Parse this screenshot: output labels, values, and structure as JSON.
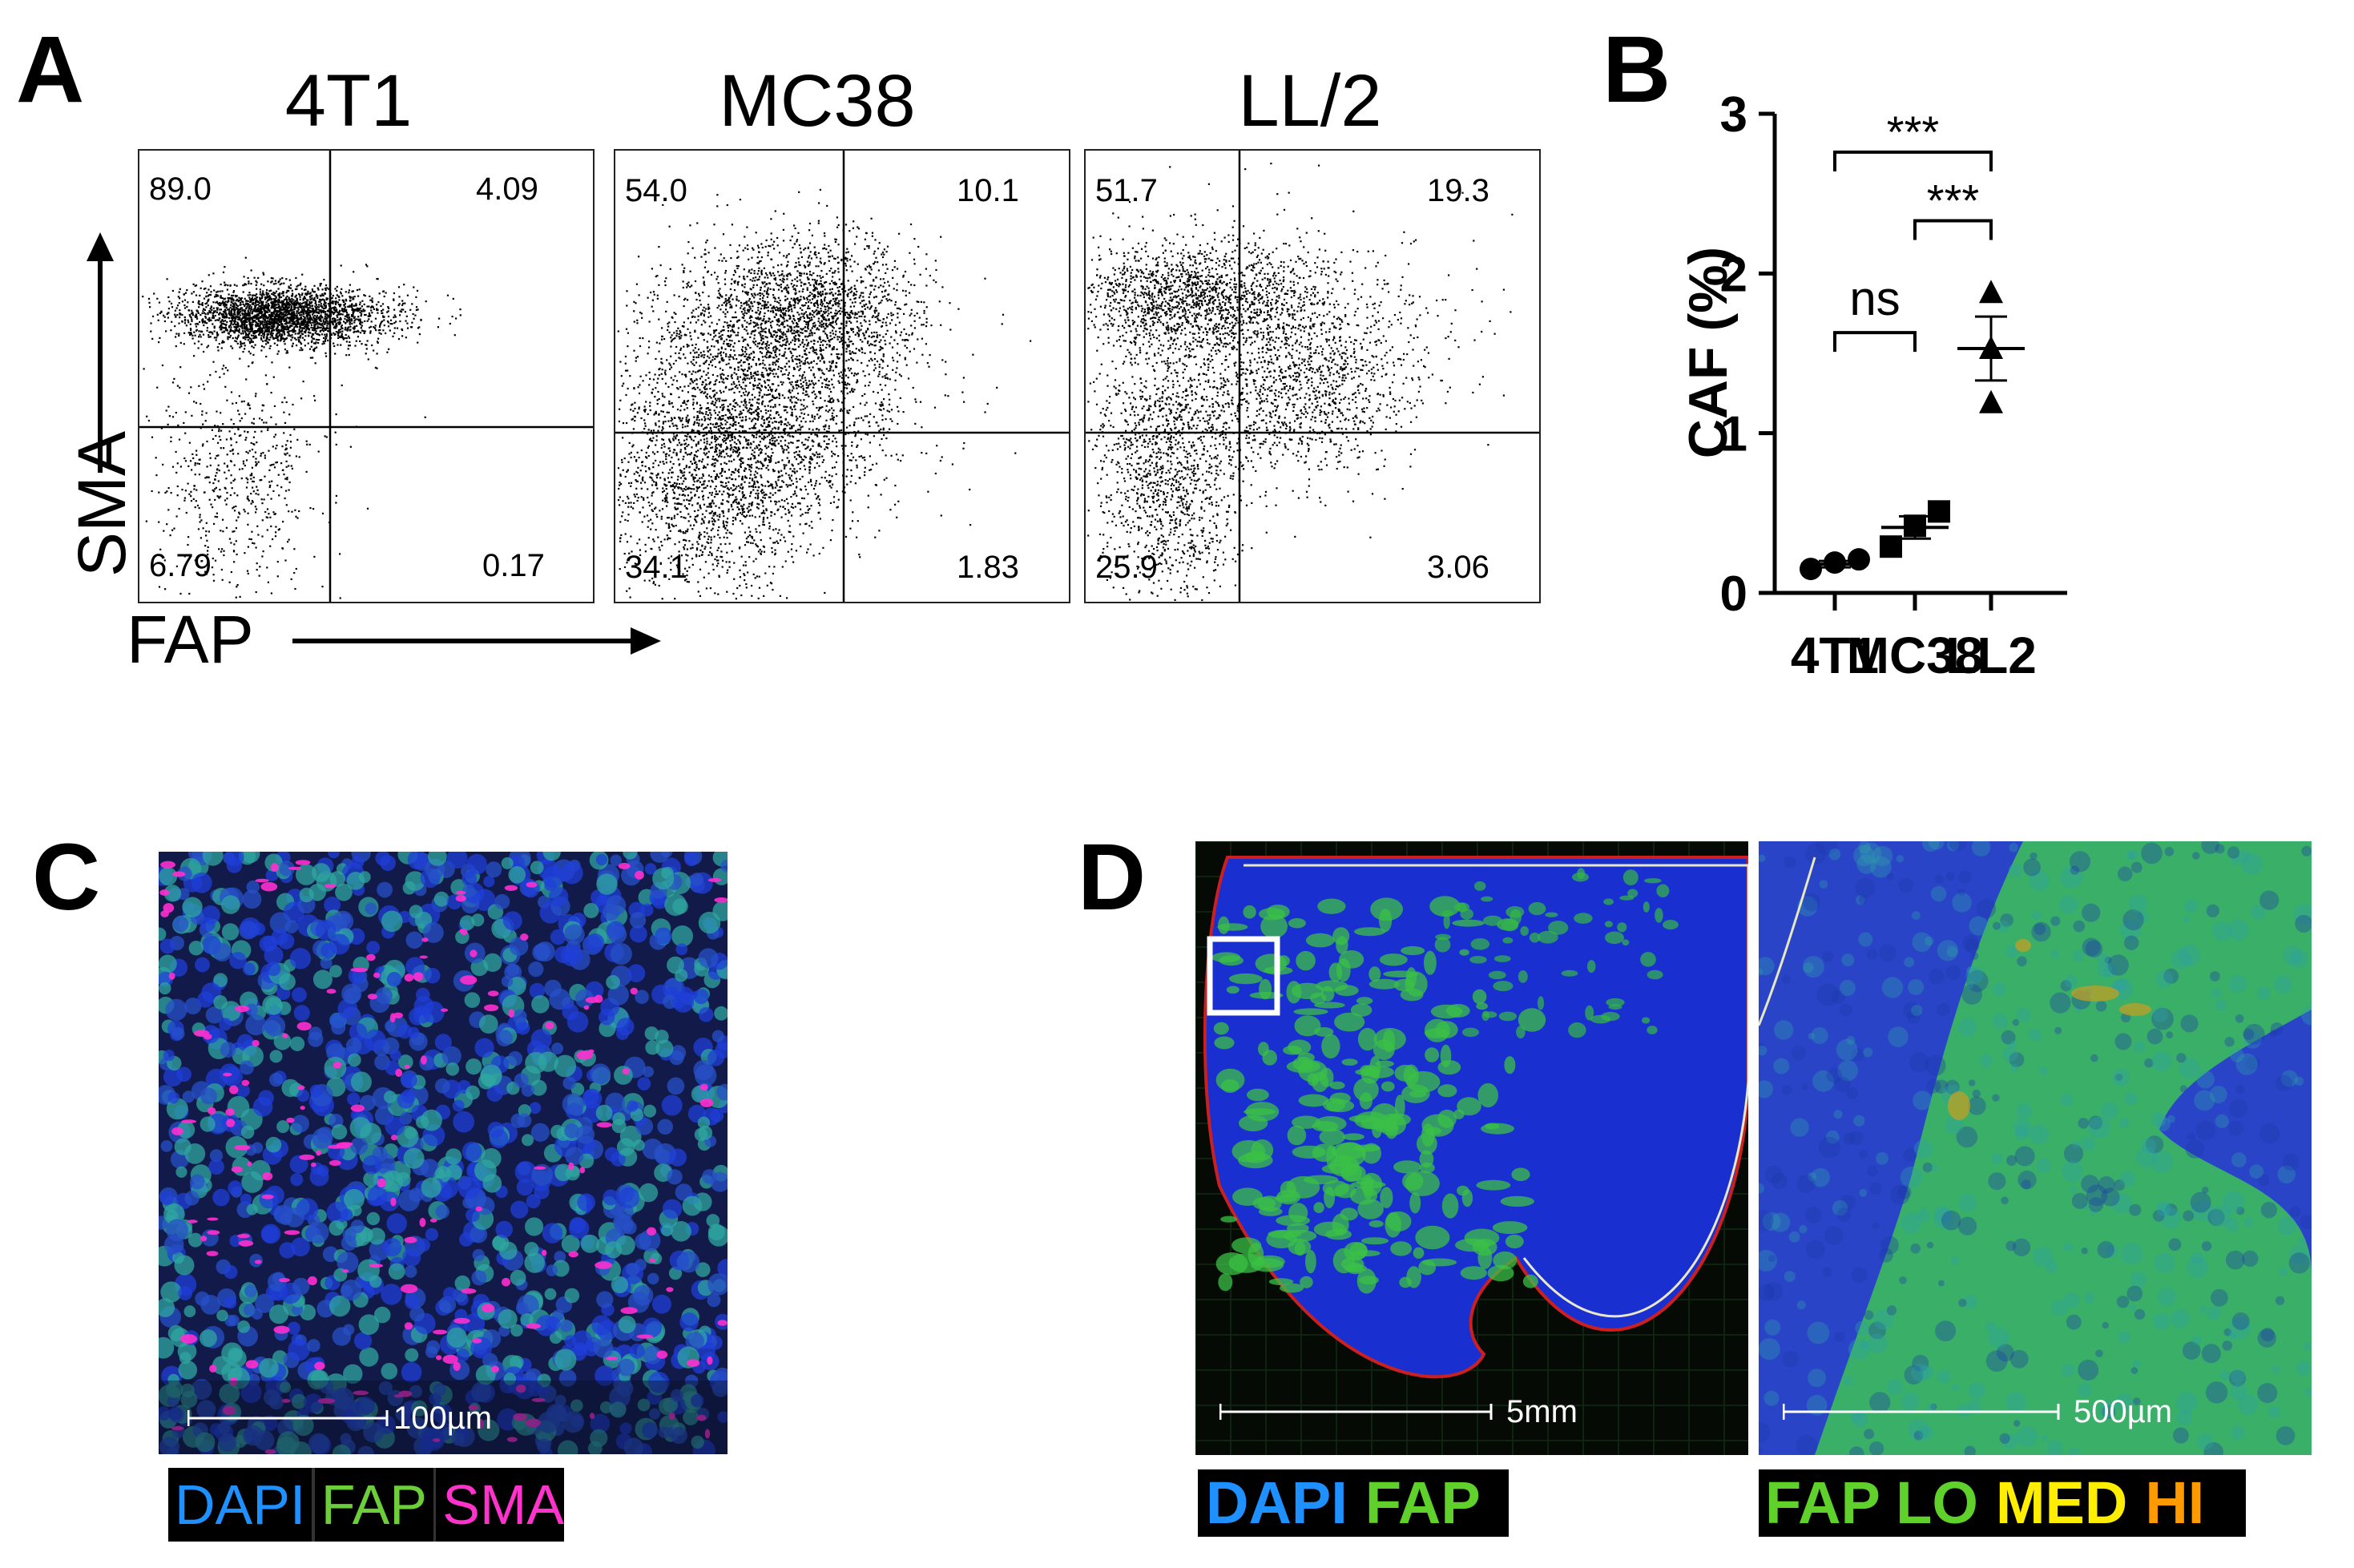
{
  "panels": {
    "A": {
      "letter": "A"
    },
    "B": {
      "letter": "B"
    },
    "C": {
      "letter": "C"
    },
    "D": {
      "letter": "D"
    }
  },
  "flow": {
    "y_axis_label": "SMA",
    "x_axis_label": "FAP",
    "plots": [
      {
        "title": "4T1",
        "ul": "89.0",
        "ur": "4.09",
        "ll": "6.79",
        "lr": "0.17"
      },
      {
        "title": "MC38",
        "ul": "54.0",
        "ur": "10.1",
        "ll": "34.1",
        "lr": "1.83"
      },
      {
        "title": "LL/2",
        "ul": "51.7",
        "ur": "19.3",
        "ll": "25.9",
        "lr": "3.06"
      }
    ]
  },
  "chart_data": {
    "type": "scatter",
    "title": "",
    "xlabel": "",
    "ylabel": "CAF (%)",
    "categories": [
      "4T1",
      "MC38",
      "LL2"
    ],
    "ylim": [
      0,
      3
    ],
    "yticks": [
      "0",
      "1",
      "2",
      "3"
    ],
    "grid": false,
    "series": [
      {
        "category": "4T1",
        "marker": "circle",
        "points": [
          0.15,
          0.19,
          0.21
        ],
        "mean": 0.18,
        "sem": 0.02
      },
      {
        "category": "MC38",
        "marker": "square",
        "points": [
          0.29,
          0.42,
          0.51
        ],
        "mean": 0.41,
        "sem": 0.07
      },
      {
        "category": "LL2",
        "marker": "triangle",
        "points": [
          1.88,
          1.53,
          1.19
        ],
        "mean": 1.53,
        "sem": 0.2
      }
    ],
    "comparisons": [
      {
        "from": "4T1",
        "to": "LL2",
        "label": "***"
      },
      {
        "from": "MC38",
        "to": "LL2",
        "label": "***"
      },
      {
        "from": "4T1",
        "to": "MC38",
        "label": "ns"
      }
    ]
  },
  "panelC": {
    "scale_text": "100µm",
    "legend": [
      {
        "text": "DAPI",
        "color": "#1e90ff"
      },
      {
        "text": "FAP",
        "color": "#6ccf3a"
      },
      {
        "text": "SMA",
        "color": "#ff33cc"
      }
    ]
  },
  "panelD": {
    "left_scale_text": "5mm",
    "right_scale_text": "500µm",
    "legend_left": [
      {
        "text": "DAPI",
        "color": "#1e90ff"
      },
      {
        "text": "FAP",
        "color": "#5fd12a"
      }
    ],
    "legend_right": [
      {
        "text": "FAP LO",
        "color": "#5fd12a"
      },
      {
        "text": "MED",
        "color": "#ffee00"
      },
      {
        "text": "HI",
        "color": "#ff9a00"
      }
    ]
  }
}
